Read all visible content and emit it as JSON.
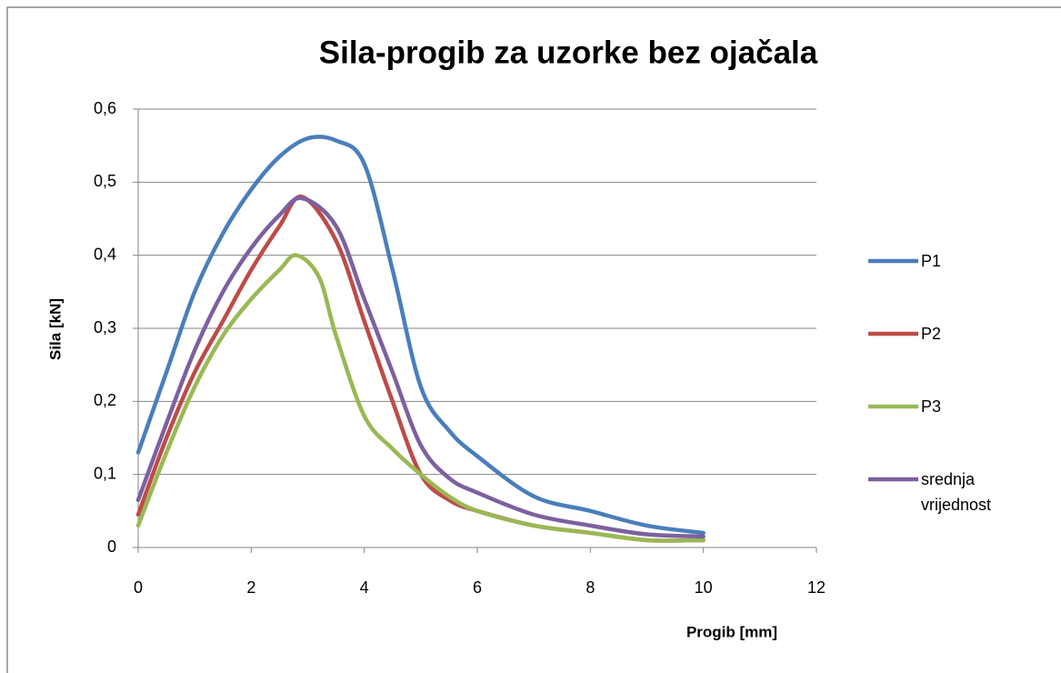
{
  "chart_data": {
    "type": "scatter",
    "title": "Sila-progib za uzorke bez ojačala",
    "x_label": "Progib [mm]",
    "y_label": "Sila  [kN]",
    "xlim": [
      0,
      12
    ],
    "xticks": [
      0,
      2,
      4,
      6,
      8,
      10,
      12
    ],
    "ylim": [
      0,
      0.6
    ],
    "yticks": [
      0,
      {
        "value": 0.1,
        "label": "0,1"
      },
      {
        "value": 0.2,
        "label": "0,2"
      },
      {
        "value": 0.3,
        "label": "0,3"
      },
      {
        "value": 0.4,
        "label": "0,4"
      },
      {
        "value": 0.5,
        "label": "0,5"
      },
      {
        "value": 0.6,
        "label": "0,6"
      }
    ],
    "grid": true,
    "smooth": true,
    "legend": "right",
    "series": [
      {
        "name": "P1",
        "color": "#4a7ebb",
        "x": [
          0,
          0.5,
          1,
          1.5,
          2,
          2.5,
          3,
          3.5,
          4,
          4.5,
          5,
          5.5,
          6,
          7,
          8,
          9,
          10
        ],
        "values": [
          0.13,
          0.24,
          0.35,
          0.43,
          0.49,
          0.535,
          0.56,
          0.557,
          0.525,
          0.38,
          0.22,
          0.16,
          0.125,
          0.07,
          0.05,
          0.03,
          0.02
        ]
      },
      {
        "name": "P2",
        "color": "#be4b48",
        "x": [
          0,
          0.5,
          1,
          1.5,
          2,
          2.5,
          2.9,
          3.5,
          4,
          4.5,
          5,
          5.5,
          6,
          7,
          8,
          9,
          10
        ],
        "values": [
          0.045,
          0.15,
          0.24,
          0.31,
          0.38,
          0.44,
          0.48,
          0.42,
          0.31,
          0.2,
          0.1,
          0.065,
          0.05,
          0.03,
          0.02,
          0.01,
          0.01
        ]
      },
      {
        "name": "P3",
        "color": "#98b954",
        "x": [
          0,
          0.5,
          1,
          1.5,
          2,
          2.5,
          2.8,
          3.2,
          3.5,
          4,
          4.5,
          5,
          5.5,
          6,
          7,
          8,
          9,
          10
        ],
        "values": [
          0.03,
          0.13,
          0.22,
          0.29,
          0.34,
          0.38,
          0.4,
          0.37,
          0.29,
          0.18,
          0.135,
          0.1,
          0.07,
          0.05,
          0.03,
          0.02,
          0.01,
          0.01
        ]
      },
      {
        "name": "srednja vrijednost",
        "color": "#7d60a0",
        "x": [
          0,
          0.5,
          1,
          1.5,
          2,
          2.5,
          2.9,
          3.5,
          4,
          4.5,
          5,
          5.5,
          6,
          7,
          8,
          9,
          10
        ],
        "values": [
          0.065,
          0.17,
          0.27,
          0.35,
          0.41,
          0.455,
          0.478,
          0.44,
          0.34,
          0.24,
          0.14,
          0.095,
          0.075,
          0.045,
          0.03,
          0.018,
          0.015
        ]
      }
    ]
  }
}
